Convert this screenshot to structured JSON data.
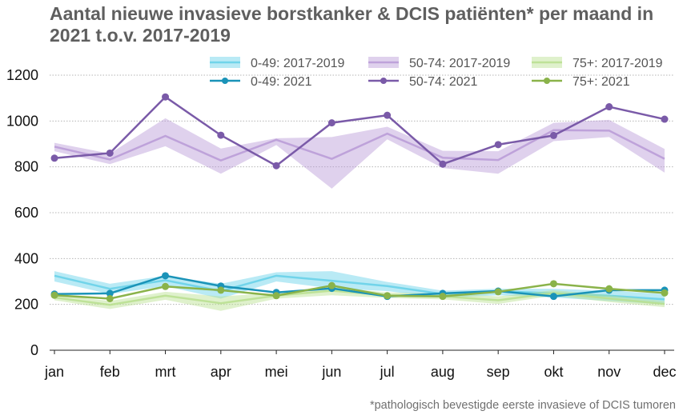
{
  "chart_data": {
    "type": "line",
    "title": "Aantal nieuwe invasieve borstkanker & DCIS patiënten* per maand in 2021 t.o.v. 2017-2019",
    "xlabel": "",
    "ylabel": "",
    "categories": [
      "jan",
      "feb",
      "mrt",
      "apr",
      "mei",
      "jun",
      "jul",
      "aug",
      "sep",
      "okt",
      "nov",
      "dec"
    ],
    "ylim": [
      0,
      1250
    ],
    "yticks": [
      0,
      200,
      400,
      600,
      800,
      1000,
      1200
    ],
    "grid": "horizontal dotted",
    "legend_placement": "top",
    "bands": [
      {
        "name": "0-49: 2017-2019",
        "color": "#64d0e8",
        "mid": [
          325,
          268,
          305,
          258,
          325,
          303,
          280,
          245,
          258,
          248,
          238,
          222
        ],
        "low": [
          300,
          245,
          280,
          225,
          300,
          270,
          258,
          228,
          240,
          230,
          215,
          200
        ],
        "high": [
          345,
          290,
          325,
          290,
          340,
          345,
          298,
          260,
          268,
          268,
          260,
          245
        ]
      },
      {
        "name": "50-74: 2017-2019",
        "color": "#b89ad6",
        "mid": [
          888,
          832,
          935,
          828,
          918,
          835,
          945,
          840,
          830,
          960,
          958,
          835
        ],
        "low": [
          868,
          812,
          890,
          770,
          895,
          705,
          920,
          795,
          770,
          912,
          930,
          775
        ],
        "high": [
          905,
          858,
          1012,
          880,
          925,
          930,
          975,
          870,
          868,
          992,
          1005,
          878
        ]
      },
      {
        "name": "75+: 2017-2019",
        "color": "#b8df8e",
        "mid": [
          230,
          198,
          238,
          205,
          238,
          260,
          240,
          235,
          218,
          250,
          226,
          202
        ],
        "low": [
          218,
          180,
          220,
          172,
          225,
          240,
          228,
          222,
          202,
          238,
          210,
          188
        ],
        "high": [
          242,
          215,
          255,
          235,
          250,
          275,
          252,
          248,
          235,
          262,
          240,
          215
        ]
      }
    ],
    "series": [
      {
        "name": "0-49: 2021",
        "color": "#1a93b8",
        "values": [
          245,
          248,
          325,
          280,
          252,
          270,
          235,
          248,
          258,
          235,
          262,
          262
        ]
      },
      {
        "name": "50-74: 2021",
        "color": "#7a5aa8",
        "values": [
          838,
          860,
          1105,
          938,
          805,
          992,
          1025,
          812,
          897,
          937,
          1062,
          1008
        ]
      },
      {
        "name": "75+: 2021",
        "color": "#8ab34a",
        "values": [
          240,
          225,
          278,
          262,
          238,
          282,
          238,
          235,
          255,
          290,
          268,
          250
        ]
      }
    ],
    "footnote": "*pathologisch bevestigde eerste invasieve of DCIS tumoren"
  }
}
